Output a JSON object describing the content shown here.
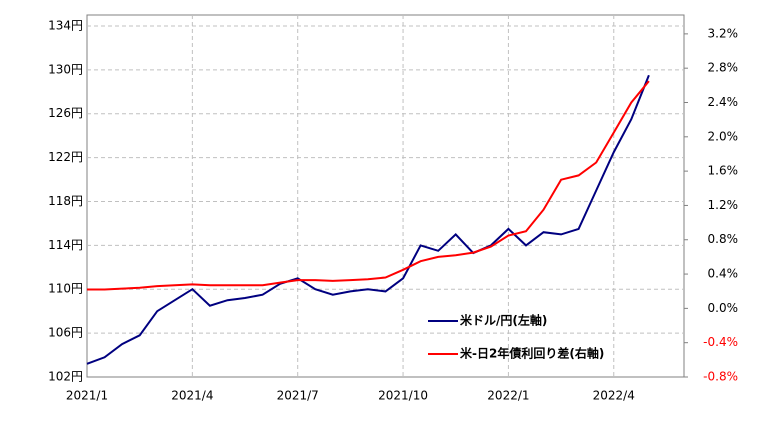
{
  "chart_data": {
    "type": "line",
    "categories": [
      "2021/1",
      null,
      null,
      null,
      null,
      null,
      "2021/4",
      null,
      null,
      null,
      null,
      null,
      "2021/7",
      null,
      null,
      null,
      null,
      null,
      "2021/10",
      null,
      null,
      null,
      null,
      null,
      "2022/1",
      null,
      null,
      null,
      null,
      null,
      "2022/4",
      null,
      null,
      null,
      null
    ],
    "series": [
      {
        "name": "米ドル/円(左軸)",
        "color": "#000080",
        "values": [
          103.2,
          103.8,
          105.0,
          105.8,
          108.0,
          109.0,
          110.0,
          108.5,
          109.0,
          109.2,
          109.5,
          110.5,
          111.0,
          110.0,
          109.5,
          109.8,
          110.0,
          109.8,
          111.0,
          114.0,
          113.5,
          115.0,
          113.3,
          114.0,
          115.5,
          114.0,
          115.2,
          115.0,
          115.5,
          119.0,
          122.5,
          125.5,
          129.5,
          null,
          null
        ]
      },
      {
        "name": "米-日2年債利回り差(右軸)",
        "color": "#ff0000",
        "axis": "y2",
        "values": [
          0.22,
          0.22,
          0.23,
          0.24,
          0.26,
          0.27,
          0.28,
          0.27,
          0.27,
          0.27,
          0.27,
          0.3,
          0.33,
          0.33,
          0.32,
          0.33,
          0.34,
          0.36,
          0.45,
          0.55,
          0.6,
          0.62,
          0.65,
          0.72,
          0.85,
          0.9,
          1.15,
          1.5,
          1.55,
          1.7,
          2.05,
          2.4,
          2.65,
          null,
          null
        ]
      }
    ],
    "ylim": [
      102,
      135
    ],
    "yticks": [
      {
        "value": 102,
        "label": "102円"
      },
      {
        "value": 106,
        "label": "106円"
      },
      {
        "value": 110,
        "label": "110円"
      },
      {
        "value": 114,
        "label": "114円"
      },
      {
        "value": 118,
        "label": "118円"
      },
      {
        "value": 122,
        "label": "122円"
      },
      {
        "value": 126,
        "label": "126円"
      },
      {
        "value": 130,
        "label": "130円"
      },
      {
        "value": 134,
        "label": "134円"
      }
    ],
    "y2lim": [
      -0.8,
      3.42
    ],
    "y2ticks": [
      {
        "value": -0.8,
        "label": "-0.8%"
      },
      {
        "value": -0.4,
        "label": "-0.4%"
      },
      {
        "value": 0,
        "label": "0.0%"
      },
      {
        "value": 0.4,
        "label": "0.4%"
      },
      {
        "value": 0.8,
        "label": "0.8%"
      },
      {
        "value": 1.2,
        "label": "1.2%"
      },
      {
        "value": 1.6,
        "label": "1.6%"
      },
      {
        "value": 2.0,
        "label": "2.0%"
      },
      {
        "value": 2.4,
        "label": "2.4%"
      },
      {
        "value": 2.8,
        "label": "2.8%"
      },
      {
        "value": 3.2,
        "label": "3.2%"
      }
    ],
    "y2_negative_color": "#ff0000",
    "grid": true,
    "legend": "lower right"
  }
}
